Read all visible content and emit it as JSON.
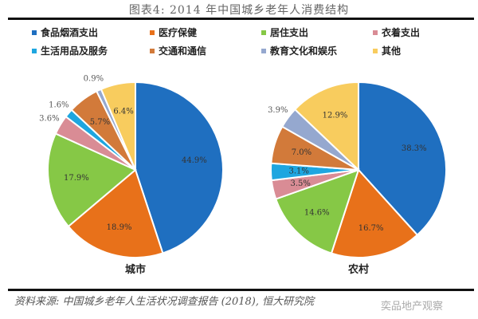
{
  "title": "图表4: 2014 年中国城乡老年人消费结构",
  "legend": [
    {
      "label": "食品烟酒支出",
      "color": "#1f6fc0"
    },
    {
      "label": "医疗保健",
      "color": "#e8711a"
    },
    {
      "label": "居住支出",
      "color": "#86c846"
    },
    {
      "label": "衣着支出",
      "color": "#d98c95"
    },
    {
      "label": "生活用品及服务",
      "color": "#1ea6e0"
    },
    {
      "label": "交通和通信",
      "color": "#d27a3a"
    },
    {
      "label": "教育文化和娱乐",
      "color": "#95a8cf"
    },
    {
      "label": "其他",
      "color": "#f8cc5e"
    }
  ],
  "captions": {
    "city": "城市",
    "rural": "农村"
  },
  "source": "资料来源: 中国城乡老年人生活状况调查报告 (2018), 恒大研究院",
  "watermark": "奕品地产观察",
  "chart_data": [
    {
      "type": "pie",
      "title": "城市",
      "categories": [
        "食品烟酒支出",
        "医疗保健",
        "居住支出",
        "衣着支出",
        "生活用品及服务",
        "交通和通信",
        "教育文化和娱乐",
        "其他"
      ],
      "values": [
        44.9,
        18.9,
        17.9,
        3.6,
        1.6,
        5.7,
        0.9,
        6.4
      ],
      "labels": [
        "44.9%",
        "18.9%",
        "17.9%",
        "3.6%",
        "1.6%",
        "5.7%",
        "0.9%",
        "6.4%"
      ],
      "start_angle": "12 o'clock, clockwise",
      "legend_position": "top"
    },
    {
      "type": "pie",
      "title": "农村",
      "categories": [
        "食品烟酒支出",
        "医疗保健",
        "居住支出",
        "衣着支出",
        "生活用品及服务",
        "交通和通信",
        "教育文化和娱乐",
        "其他"
      ],
      "values": [
        38.3,
        16.7,
        14.6,
        3.5,
        3.1,
        7.0,
        3.9,
        12.9
      ],
      "labels": [
        "38.3%",
        "16.7%",
        "14.6%",
        "3.5%",
        "3.1%",
        "7.0%",
        "3.9%",
        "12.9%"
      ],
      "start_angle": "12 o'clock, clockwise",
      "legend_position": "top"
    }
  ]
}
